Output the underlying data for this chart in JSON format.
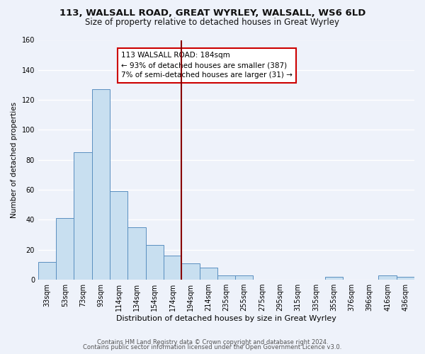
{
  "title": "113, WALSALL ROAD, GREAT WYRLEY, WALSALL, WS6 6LD",
  "subtitle": "Size of property relative to detached houses in Great Wyrley",
  "xlabel": "Distribution of detached houses by size in Great Wyrley",
  "ylabel": "Number of detached properties",
  "bin_labels": [
    "33sqm",
    "53sqm",
    "73sqm",
    "93sqm",
    "114sqm",
    "134sqm",
    "154sqm",
    "174sqm",
    "194sqm",
    "214sqm",
    "235sqm",
    "255sqm",
    "275sqm",
    "295sqm",
    "315sqm",
    "335sqm",
    "355sqm",
    "376sqm",
    "396sqm",
    "416sqm",
    "436sqm"
  ],
  "bin_values": [
    12,
    41,
    85,
    127,
    59,
    35,
    23,
    16,
    11,
    8,
    3,
    3,
    0,
    0,
    0,
    0,
    2,
    0,
    0,
    3,
    2
  ],
  "bar_color": "#c8dff0",
  "bar_edge_color": "#5a8fc0",
  "background_color": "#eef2fa",
  "grid_color": "#ffffff",
  "vline_color": "#880000",
  "annotation_line1": "113 WALSALL ROAD: 184sqm",
  "annotation_line2": "← 93% of detached houses are smaller (387)",
  "annotation_line3": "7% of semi-detached houses are larger (31) →",
  "annotation_box_color": "#ffffff",
  "annotation_box_edge_color": "#cc0000",
  "ylim": [
    0,
    160
  ],
  "yticks": [
    0,
    20,
    40,
    60,
    80,
    100,
    120,
    140,
    160
  ],
  "title_fontsize": 9.5,
  "subtitle_fontsize": 8.5,
  "footer_line1": "Contains HM Land Registry data © Crown copyright and database right 2024.",
  "footer_line2": "Contains public sector information licensed under the Open Government Licence v3.0."
}
